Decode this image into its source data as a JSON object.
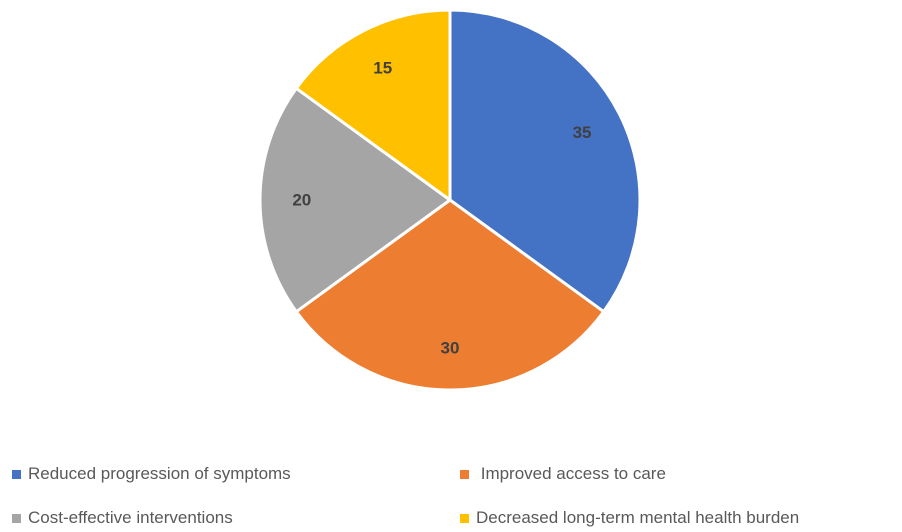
{
  "chart_data": {
    "type": "pie",
    "categories": [
      "Reduced progression of symptoms",
      " Improved access to care",
      "Cost-effective interventions",
      "Decreased long-term mental health burden"
    ],
    "values": [
      35,
      30,
      20,
      15
    ],
    "value_labels": [
      "35",
      "30",
      "20",
      "15"
    ],
    "colors": [
      "#4472C4",
      "#ED7D31",
      "#A5A5A5",
      "#FFC000"
    ],
    "start_angle_deg": 0,
    "direction": "clockwise",
    "legend_position": "bottom",
    "title": ""
  }
}
